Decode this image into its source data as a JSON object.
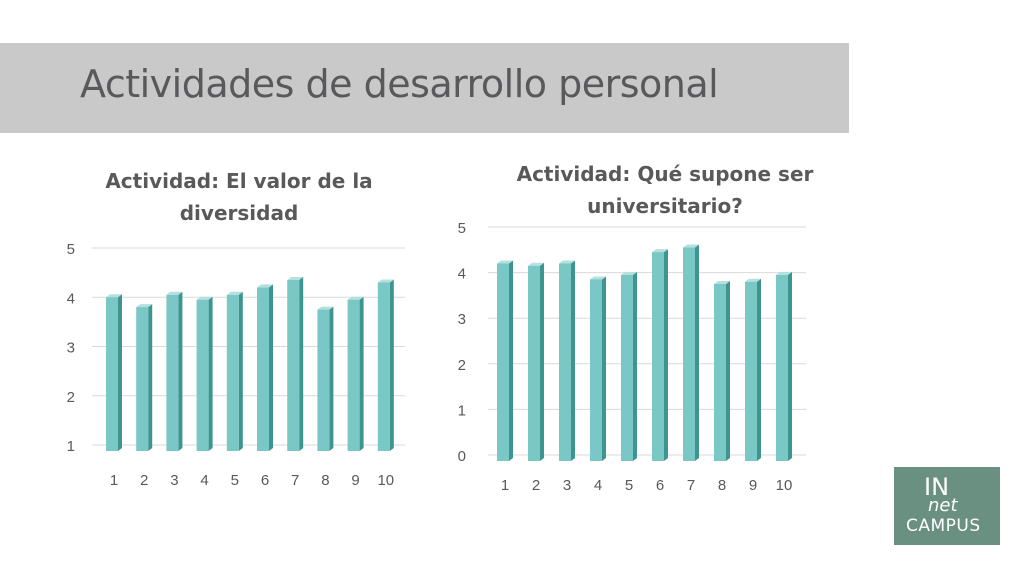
{
  "slide": {
    "title": "Actividades de desarrollo personal"
  },
  "colors": {
    "title_band": "#c9c9c9",
    "bar_front": "#7ac8c5",
    "bar_side": "#3e9590",
    "bar_top": "#b4e0de",
    "grid": "#d9d9d9",
    "label": "#595959",
    "logo_bg": "#6a9082"
  },
  "logo": {
    "line1": "IN",
    "line2": "net",
    "line3": "CAMPUS"
  },
  "chart_data": [
    {
      "type": "bar",
      "title": "Actividad: El valor de la diversidad",
      "categories": [
        "1",
        "2",
        "3",
        "4",
        "5",
        "6",
        "7",
        "8",
        "9",
        "10"
      ],
      "values": [
        4.0,
        3.8,
        4.05,
        3.95,
        4.05,
        4.2,
        4.35,
        3.75,
        3.95,
        4.3
      ],
      "ylim": [
        1,
        5
      ],
      "yticks": [
        1,
        2,
        3,
        4,
        5
      ],
      "grid": true,
      "legend": "none",
      "style": "3d-column"
    },
    {
      "type": "bar",
      "title": "Actividad: Qué supone ser universitario?",
      "categories": [
        "1",
        "2",
        "3",
        "4",
        "5",
        "6",
        "7",
        "8",
        "9",
        "10"
      ],
      "values": [
        4.2,
        4.15,
        4.2,
        3.85,
        3.95,
        4.45,
        4.55,
        3.75,
        3.8,
        3.95
      ],
      "ylim": [
        0,
        5
      ],
      "yticks": [
        0,
        1,
        2,
        3,
        4,
        5
      ],
      "grid": true,
      "legend": "none",
      "style": "3d-column"
    }
  ]
}
